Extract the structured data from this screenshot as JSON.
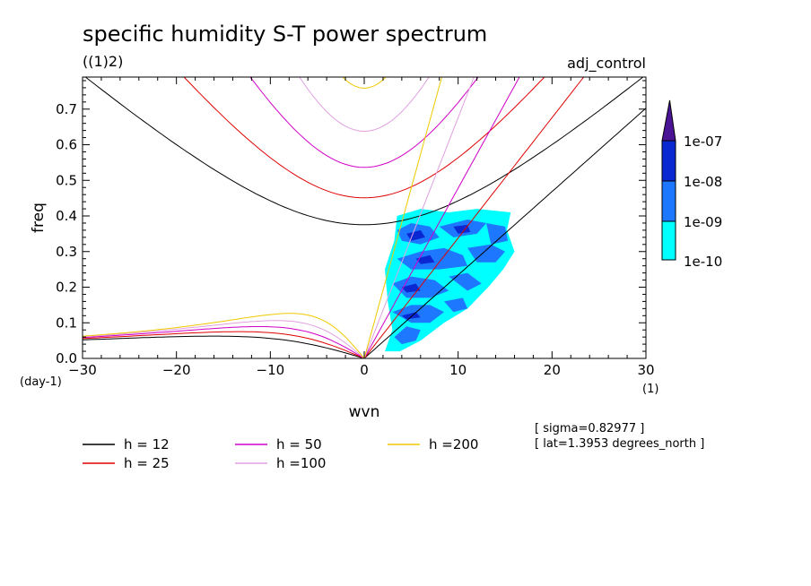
{
  "chart_data": {
    "type": "contour",
    "title": "specific humidity S-T power spectrum",
    "subtitle": "((1)2)",
    "experiment": "adj_control",
    "xlabel": "wvn",
    "ylabel": "freq",
    "x_unit": "(1)",
    "y_unit": "(day-1)",
    "xlim": [
      -30,
      30
    ],
    "ylim": [
      0,
      0.79
    ],
    "x_ticks": [
      "-30",
      "-20",
      "-10",
      "0",
      "10",
      "20",
      "30"
    ],
    "y_ticks": [
      "0.0",
      "0.1",
      "0.2",
      "0.3",
      "0.4",
      "0.5",
      "0.6",
      "0.7"
    ],
    "colorbar": {
      "levels": [
        "1e-10",
        "1e-09",
        "1e-08",
        "1e-07"
      ],
      "colors": [
        "#00ffff",
        "#1e78ff",
        "#0a28d2",
        "#4b1496"
      ]
    },
    "dispersion_curves": [
      {
        "label": "h = 12",
        "h": 12,
        "color": "#000000"
      },
      {
        "label": "h = 25",
        "h": 25,
        "color": "#e00000"
      },
      {
        "label": "h = 50",
        "h": 50,
        "color": "#d000c8"
      },
      {
        "label": "h =100",
        "h": 100,
        "color": "#e0a0e0"
      },
      {
        "label": "h =200",
        "h": 200,
        "color": "#f0c800"
      }
    ],
    "annotations": {
      "sigma": "[ sigma=0.82977 ]",
      "lat": "[ lat=1.3953 degrees_north ]"
    }
  }
}
